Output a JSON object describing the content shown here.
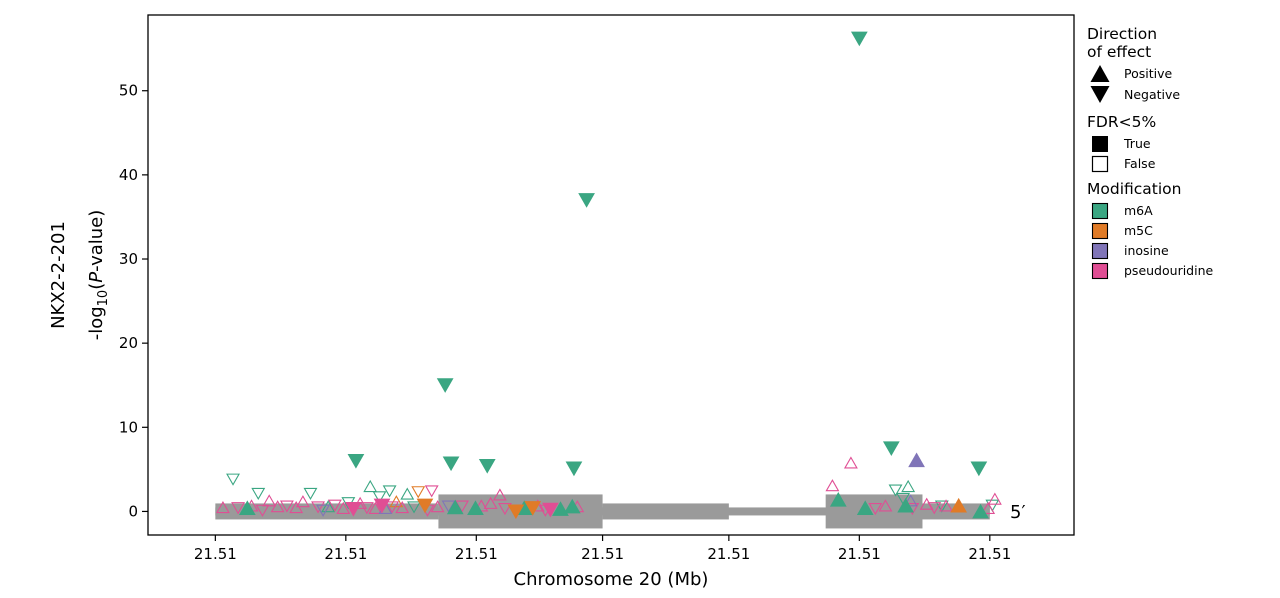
{
  "chart_data": {
    "type": "scatter",
    "ylabel_gene": "NKX2-2-201",
    "ylabel_main": "-log",
    "ylabel_sub": "10",
    "ylabel_paren": "(",
    "ylabel_p": "P",
    "ylabel_tail": "-value)",
    "xlabel": "Chromosome 20 (Mb)",
    "ylim": [
      -2.8,
      59
    ],
    "xlim": [
      -8,
      102
    ],
    "y_ticks": [
      0,
      10,
      20,
      30,
      40,
      50
    ],
    "y_tick_labels": [
      "0",
      "10",
      "20",
      "30",
      "40",
      "50"
    ],
    "x_ticks": [
      0,
      15.5,
      31,
      46,
      61,
      76.5,
      92
    ],
    "x_tick_labels": [
      "21.51",
      "21.51",
      "21.51",
      "21.51",
      "21.51",
      "21.51",
      "21.51"
    ],
    "strand_label": "5′",
    "colors": {
      "m6A": "#3aa682",
      "m5C": "#e07b27",
      "inosine": "#8075b8",
      "pseudouridine": "#e04e94",
      "gene": "#9a9a9a"
    },
    "gene_model": {
      "intron": [
        0,
        92
      ],
      "utr": [
        [
          0,
          26.5
        ],
        [
          46,
          61
        ],
        [
          80,
          92
        ]
      ],
      "cds": [
        [
          26.5,
          46
        ],
        [
          72.5,
          84
        ]
      ]
    },
    "legend": {
      "direction_title": "Direction\nof effect",
      "direction_items": [
        "Positive",
        "Negative"
      ],
      "fdr_title": "FDR<5%",
      "fdr_items": [
        "True",
        "False"
      ],
      "mod_title": "Modification",
      "mod_items": [
        "m6A",
        "m5C",
        "inosine",
        "pseudouridine"
      ]
    },
    "points": [
      {
        "x": 76.5,
        "y": 56.3,
        "mod": "m6A",
        "dir": "neg",
        "sig": true
      },
      {
        "x": 44.1,
        "y": 37.1,
        "mod": "m6A",
        "dir": "neg",
        "sig": true
      },
      {
        "x": 27.3,
        "y": 15.1,
        "mod": "m6A",
        "dir": "neg",
        "sig": true
      },
      {
        "x": 16.7,
        "y": 6.1,
        "mod": "m6A",
        "dir": "neg",
        "sig": true
      },
      {
        "x": 28.0,
        "y": 5.8,
        "mod": "m6A",
        "dir": "neg",
        "sig": true
      },
      {
        "x": 32.3,
        "y": 5.5,
        "mod": "m6A",
        "dir": "neg",
        "sig": true
      },
      {
        "x": 42.6,
        "y": 5.2,
        "mod": "m6A",
        "dir": "neg",
        "sig": true
      },
      {
        "x": 80.3,
        "y": 7.6,
        "mod": "m6A",
        "dir": "neg",
        "sig": true
      },
      {
        "x": 90.7,
        "y": 5.2,
        "mod": "m6A",
        "dir": "neg",
        "sig": true
      },
      {
        "x": 83.3,
        "y": 6.0,
        "mod": "inosine",
        "dir": "pos",
        "sig": true
      },
      {
        "x": 74.0,
        "y": 1.3,
        "mod": "m6A",
        "dir": "pos",
        "sig": true
      },
      {
        "x": 77.2,
        "y": 0.3,
        "mod": "m6A",
        "dir": "pos",
        "sig": true
      },
      {
        "x": 82.0,
        "y": 0.6,
        "mod": "m6A",
        "dir": "pos",
        "sig": true
      },
      {
        "x": 90.9,
        "y": -0.1,
        "mod": "m6A",
        "dir": "pos",
        "sig": true
      },
      {
        "x": 36.7,
        "y": 0.3,
        "mod": "m6A",
        "dir": "pos",
        "sig": true
      },
      {
        "x": 41.0,
        "y": 0.2,
        "mod": "m6A",
        "dir": "pos",
        "sig": true
      },
      {
        "x": 42.4,
        "y": 0.5,
        "mod": "m6A",
        "dir": "pos",
        "sig": true
      },
      {
        "x": 28.5,
        "y": 0.4,
        "mod": "m6A",
        "dir": "pos",
        "sig": true
      },
      {
        "x": 3.8,
        "y": 0.3,
        "mod": "m6A",
        "dir": "pos",
        "sig": true
      },
      {
        "x": 30.9,
        "y": 0.3,
        "mod": "m6A",
        "dir": "pos",
        "sig": true
      },
      {
        "x": 88.3,
        "y": 0.6,
        "mod": "m5C",
        "dir": "pos",
        "sig": true
      },
      {
        "x": 37.7,
        "y": 0.5,
        "mod": "m5C",
        "dir": "neg",
        "sig": true
      },
      {
        "x": 35.7,
        "y": 0.1,
        "mod": "m5C",
        "dir": "neg",
        "sig": true
      },
      {
        "x": 24.9,
        "y": 0.8,
        "mod": "m5C",
        "dir": "neg",
        "sig": true
      },
      {
        "x": 19.8,
        "y": 0.8,
        "mod": "pseudouridine",
        "dir": "neg",
        "sig": true
      },
      {
        "x": 16.4,
        "y": 0.4,
        "mod": "pseudouridine",
        "dir": "neg",
        "sig": true
      },
      {
        "x": 39.8,
        "y": 0.3,
        "mod": "pseudouridine",
        "dir": "neg",
        "sig": true
      },
      {
        "x": 2.1,
        "y": 3.9,
        "mod": "m6A",
        "dir": "neg",
        "sig": false
      },
      {
        "x": 5.1,
        "y": 2.2,
        "mod": "m6A",
        "dir": "neg",
        "sig": false
      },
      {
        "x": 11.3,
        "y": 2.2,
        "mod": "m6A",
        "dir": "neg",
        "sig": false
      },
      {
        "x": 15.8,
        "y": 1.1,
        "mod": "m6A",
        "dir": "neg",
        "sig": false
      },
      {
        "x": 18.4,
        "y": 2.9,
        "mod": "m6A",
        "dir": "pos",
        "sig": false
      },
      {
        "x": 19.5,
        "y": 1.8,
        "mod": "m6A",
        "dir": "neg",
        "sig": false
      },
      {
        "x": 20.7,
        "y": 2.5,
        "mod": "m6A",
        "dir": "neg",
        "sig": false
      },
      {
        "x": 22.8,
        "y": 2.0,
        "mod": "m6A",
        "dir": "pos",
        "sig": false
      },
      {
        "x": 23.6,
        "y": 0.6,
        "mod": "m6A",
        "dir": "neg",
        "sig": false
      },
      {
        "x": 13.4,
        "y": 0.5,
        "mod": "m6A",
        "dir": "pos",
        "sig": false
      },
      {
        "x": 80.8,
        "y": 2.6,
        "mod": "m6A",
        "dir": "neg",
        "sig": false
      },
      {
        "x": 82.3,
        "y": 2.9,
        "mod": "m6A",
        "dir": "pos",
        "sig": false
      },
      {
        "x": 81.7,
        "y": 1.6,
        "mod": "m6A",
        "dir": "neg",
        "sig": false
      },
      {
        "x": 92.3,
        "y": 0.8,
        "mod": "m6A",
        "dir": "neg",
        "sig": false
      },
      {
        "x": 86.3,
        "y": 0.7,
        "mod": "m6A",
        "dir": "neg",
        "sig": false
      },
      {
        "x": 24.1,
        "y": 2.4,
        "mod": "m5C",
        "dir": "neg",
        "sig": false
      },
      {
        "x": 21.5,
        "y": 1.1,
        "mod": "m5C",
        "dir": "pos",
        "sig": false
      },
      {
        "x": 25.7,
        "y": 2.5,
        "mod": "pseudouridine",
        "dir": "neg",
        "sig": false
      },
      {
        "x": 73.3,
        "y": 3.0,
        "mod": "pseudouridine",
        "dir": "pos",
        "sig": false
      },
      {
        "x": 75.5,
        "y": 5.7,
        "mod": "pseudouridine",
        "dir": "pos",
        "sig": false
      },
      {
        "x": 33.8,
        "y": 1.9,
        "mod": "pseudouridine",
        "dir": "pos",
        "sig": false
      },
      {
        "x": 92.6,
        "y": 1.4,
        "mod": "pseudouridine",
        "dir": "pos",
        "sig": false
      },
      {
        "x": 0.9,
        "y": 0.4,
        "mod": "pseudouridine",
        "dir": "pos",
        "sig": false
      },
      {
        "x": 2.7,
        "y": 0.5,
        "mod": "pseudouridine",
        "dir": "neg",
        "sig": false
      },
      {
        "x": 4.3,
        "y": 0.6,
        "mod": "pseudouridine",
        "dir": "pos",
        "sig": false
      },
      {
        "x": 5.6,
        "y": 0.2,
        "mod": "pseudouridine",
        "dir": "neg",
        "sig": false
      },
      {
        "x": 6.4,
        "y": 1.2,
        "mod": "pseudouridine",
        "dir": "pos",
        "sig": false
      },
      {
        "x": 7.4,
        "y": 0.5,
        "mod": "pseudouridine",
        "dir": "pos",
        "sig": false
      },
      {
        "x": 8.5,
        "y": 0.7,
        "mod": "pseudouridine",
        "dir": "neg",
        "sig": false
      },
      {
        "x": 9.6,
        "y": 0.4,
        "mod": "pseudouridine",
        "dir": "pos",
        "sig": false
      },
      {
        "x": 10.4,
        "y": 1.1,
        "mod": "pseudouridine",
        "dir": "pos",
        "sig": false
      },
      {
        "x": 12.2,
        "y": 0.6,
        "mod": "pseudouridine",
        "dir": "neg",
        "sig": false
      },
      {
        "x": 14.2,
        "y": 0.8,
        "mod": "pseudouridine",
        "dir": "neg",
        "sig": false
      },
      {
        "x": 15.2,
        "y": 0.3,
        "mod": "pseudouridine",
        "dir": "pos",
        "sig": false
      },
      {
        "x": 17.2,
        "y": 0.9,
        "mod": "pseudouridine",
        "dir": "pos",
        "sig": false
      },
      {
        "x": 18.0,
        "y": 0.5,
        "mod": "pseudouridine",
        "dir": "neg",
        "sig": false
      },
      {
        "x": 19.0,
        "y": 0.3,
        "mod": "pseudouridine",
        "dir": "pos",
        "sig": false
      },
      {
        "x": 21.0,
        "y": 0.6,
        "mod": "pseudouridine",
        "dir": "neg",
        "sig": false
      },
      {
        "x": 22.2,
        "y": 0.4,
        "mod": "pseudouridine",
        "dir": "pos",
        "sig": false
      },
      {
        "x": 25.2,
        "y": 0.2,
        "mod": "pseudouridine",
        "dir": "neg",
        "sig": false
      },
      {
        "x": 26.4,
        "y": 0.5,
        "mod": "pseudouridine",
        "dir": "pos",
        "sig": false
      },
      {
        "x": 29.3,
        "y": 0.7,
        "mod": "pseudouridine",
        "dir": "neg",
        "sig": false
      },
      {
        "x": 31.6,
        "y": 0.6,
        "mod": "pseudouridine",
        "dir": "pos",
        "sig": false
      },
      {
        "x": 32.7,
        "y": 0.9,
        "mod": "pseudouridine",
        "dir": "pos",
        "sig": false
      },
      {
        "x": 34.4,
        "y": 0.4,
        "mod": "pseudouridine",
        "dir": "neg",
        "sig": false
      },
      {
        "x": 38.3,
        "y": 0.6,
        "mod": "pseudouridine",
        "dir": "pos",
        "sig": false
      },
      {
        "x": 39.2,
        "y": 0.2,
        "mod": "pseudouridine",
        "dir": "neg",
        "sig": false
      },
      {
        "x": 43.0,
        "y": 0.5,
        "mod": "pseudouridine",
        "dir": "pos",
        "sig": false
      },
      {
        "x": 78.4,
        "y": 0.4,
        "mod": "pseudouridine",
        "dir": "neg",
        "sig": false
      },
      {
        "x": 79.6,
        "y": 0.6,
        "mod": "pseudouridine",
        "dir": "pos",
        "sig": false
      },
      {
        "x": 82.8,
        "y": 0.4,
        "mod": "pseudouridine",
        "dir": "neg",
        "sig": false
      },
      {
        "x": 84.5,
        "y": 0.8,
        "mod": "pseudouridine",
        "dir": "pos",
        "sig": false
      },
      {
        "x": 85.4,
        "y": 0.5,
        "mod": "pseudouridine",
        "dir": "neg",
        "sig": false
      },
      {
        "x": 86.8,
        "y": 0.6,
        "mod": "pseudouridine",
        "dir": "pos",
        "sig": false
      },
      {
        "x": 91.8,
        "y": 0.3,
        "mod": "pseudouridine",
        "dir": "pos",
        "sig": false
      },
      {
        "x": 12.8,
        "y": 0.2,
        "mod": "inosine",
        "dir": "neg",
        "sig": false
      },
      {
        "x": 20.2,
        "y": 0.3,
        "mod": "inosine",
        "dir": "pos",
        "sig": false
      },
      {
        "x": 27.7,
        "y": 0.7,
        "mod": "inosine",
        "dir": "neg",
        "sig": false
      },
      {
        "x": 82.6,
        "y": 1.2,
        "mod": "inosine",
        "dir": "pos",
        "sig": false
      }
    ]
  }
}
